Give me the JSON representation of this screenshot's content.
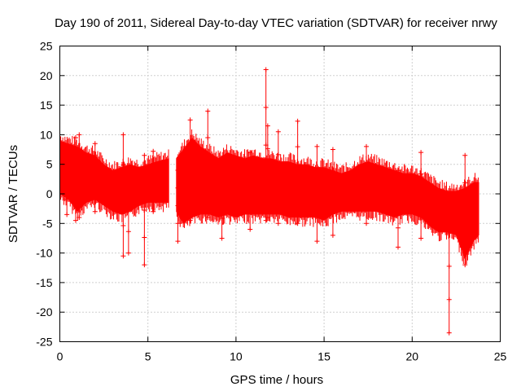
{
  "chart_data": {
    "type": "scatter",
    "title": "Day 190 of 2011, Sidereal Day-to-day VTEC variation (SDTVAR) for receiver nrwy",
    "xlabel": "GPS time / hours",
    "ylabel": "SDTVAR / TECUs",
    "xlim": [
      0,
      25
    ],
    "ylim": [
      -25,
      25
    ],
    "xticks": [
      0,
      5,
      10,
      15,
      20,
      25
    ],
    "yticks": [
      -25,
      -20,
      -15,
      -10,
      -5,
      0,
      5,
      10,
      15,
      20,
      25
    ],
    "grid": true,
    "marker": "plus",
    "color": "#ff0000",
    "series": [
      {
        "name": "nrwy",
        "band_upper": [
          [
            0.0,
            9.0
          ],
          [
            0.5,
            8.5
          ],
          [
            1.0,
            8.0
          ],
          [
            1.5,
            7.0
          ],
          [
            2.0,
            6.5
          ],
          [
            2.5,
            5.0
          ],
          [
            3.0,
            4.0
          ],
          [
            3.5,
            4.5
          ],
          [
            4.0,
            5.0
          ],
          [
            4.5,
            4.5
          ],
          [
            5.0,
            5.0
          ],
          [
            5.5,
            5.5
          ],
          [
            6.2,
            6.0
          ],
          [
            6.6,
            6.0
          ],
          [
            7.0,
            7.5
          ],
          [
            7.5,
            9.5
          ],
          [
            8.0,
            8.0
          ],
          [
            8.5,
            7.0
          ],
          [
            9.0,
            6.0
          ],
          [
            9.5,
            7.0
          ],
          [
            10.0,
            6.5
          ],
          [
            10.5,
            6.0
          ],
          [
            11.0,
            6.5
          ],
          [
            11.5,
            6.0
          ],
          [
            12.0,
            6.0
          ],
          [
            12.5,
            5.5
          ],
          [
            13.0,
            5.5
          ],
          [
            13.5,
            5.0
          ],
          [
            14.0,
            5.0
          ],
          [
            14.5,
            4.5
          ],
          [
            15.0,
            4.5
          ],
          [
            15.5,
            4.0
          ],
          [
            16.0,
            3.5
          ],
          [
            16.5,
            4.0
          ],
          [
            17.0,
            5.0
          ],
          [
            17.5,
            5.5
          ],
          [
            18.0,
            5.0
          ],
          [
            18.5,
            4.5
          ],
          [
            19.0,
            4.0
          ],
          [
            19.5,
            3.5
          ],
          [
            20.0,
            3.5
          ],
          [
            20.5,
            3.0
          ],
          [
            21.0,
            2.0
          ],
          [
            21.5,
            1.0
          ],
          [
            22.0,
            0.5
          ],
          [
            22.5,
            0.5
          ],
          [
            23.0,
            1.0
          ],
          [
            23.5,
            2.0
          ],
          [
            23.8,
            2.0
          ]
        ],
        "band_lower": [
          [
            0.0,
            0.0
          ],
          [
            0.5,
            -1.0
          ],
          [
            1.0,
            -3.0
          ],
          [
            1.5,
            -1.5
          ],
          [
            2.0,
            -1.0
          ],
          [
            2.5,
            -2.0
          ],
          [
            3.0,
            -3.0
          ],
          [
            3.5,
            -3.5
          ],
          [
            4.0,
            -3.0
          ],
          [
            4.5,
            -2.0
          ],
          [
            5.0,
            -1.5
          ],
          [
            5.5,
            -1.5
          ],
          [
            6.2,
            -1.5
          ],
          [
            6.6,
            -3.0
          ],
          [
            7.0,
            -5.0
          ],
          [
            7.5,
            -4.0
          ],
          [
            8.0,
            -3.5
          ],
          [
            8.5,
            -3.5
          ],
          [
            9.0,
            -4.0
          ],
          [
            9.5,
            -3.5
          ],
          [
            10.0,
            -4.0
          ],
          [
            10.5,
            -3.5
          ],
          [
            11.0,
            -3.5
          ],
          [
            11.5,
            -3.5
          ],
          [
            12.0,
            -3.5
          ],
          [
            12.5,
            -3.5
          ],
          [
            13.0,
            -4.0
          ],
          [
            13.5,
            -4.0
          ],
          [
            14.0,
            -4.0
          ],
          [
            14.5,
            -4.0
          ],
          [
            15.0,
            -4.5
          ],
          [
            15.5,
            -3.5
          ],
          [
            16.0,
            -3.0
          ],
          [
            16.5,
            -3.0
          ],
          [
            17.0,
            -3.0
          ],
          [
            17.5,
            -3.0
          ],
          [
            18.0,
            -3.0
          ],
          [
            18.5,
            -3.5
          ],
          [
            19.0,
            -4.0
          ],
          [
            19.5,
            -3.5
          ],
          [
            20.0,
            -3.5
          ],
          [
            20.5,
            -4.0
          ],
          [
            21.0,
            -5.5
          ],
          [
            21.5,
            -6.5
          ],
          [
            22.0,
            -6.5
          ],
          [
            22.5,
            -7.0
          ],
          [
            23.0,
            -11.0
          ],
          [
            23.5,
            -8.0
          ],
          [
            23.8,
            -7.0
          ]
        ],
        "spikes": [
          [
            0.4,
            -3.5,
            7.0
          ],
          [
            0.9,
            -4.5,
            9.5
          ],
          [
            1.1,
            -4.0,
            10.0
          ],
          [
            2.0,
            -3.0,
            8.5
          ],
          [
            3.6,
            -10.5,
            10.0
          ],
          [
            3.9,
            -10.0,
            4.5
          ],
          [
            4.8,
            -12.0,
            6.5
          ],
          [
            5.3,
            -3.0,
            7.2
          ],
          [
            6.7,
            -8.0,
            4.0
          ],
          [
            7.4,
            -4.5,
            12.5
          ],
          [
            8.4,
            -4.0,
            14.0
          ],
          [
            9.2,
            -7.5,
            6.0
          ],
          [
            10.8,
            -6.0,
            7.0
          ],
          [
            11.7,
            -4.5,
            21.0
          ],
          [
            11.8,
            -4.0,
            11.5
          ],
          [
            12.4,
            -5.0,
            10.5
          ],
          [
            13.5,
            -5.0,
            12.3
          ],
          [
            14.6,
            -8.0,
            8.0
          ],
          [
            15.5,
            -7.0,
            7.5
          ],
          [
            17.4,
            -5.0,
            8.0
          ],
          [
            19.2,
            -9.0,
            4.0
          ],
          [
            20.5,
            -7.5,
            7.0
          ],
          [
            22.1,
            -23.5,
            -1.0
          ],
          [
            23.0,
            -12.0,
            6.5
          ]
        ]
      }
    ]
  }
}
